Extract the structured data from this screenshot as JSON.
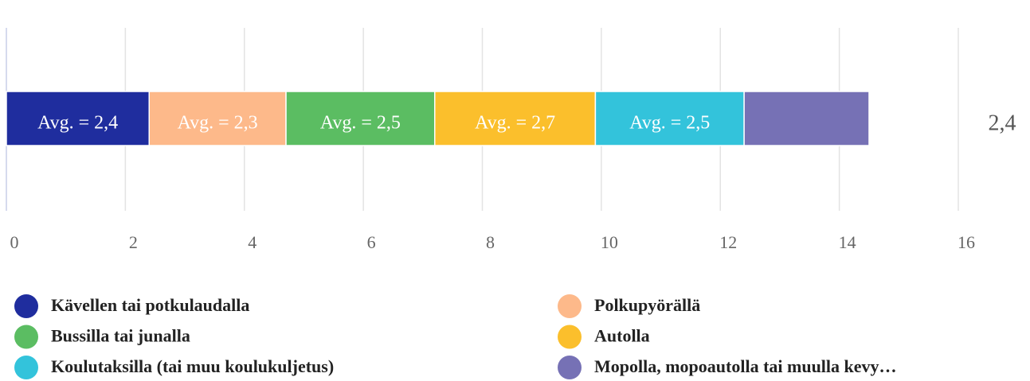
{
  "chart_data": {
    "type": "stacked-bar-horizontal",
    "series": [
      {
        "name": "Kävellen tai potkulaudalla",
        "color": "#1f2d9e",
        "values": [
          2.4
        ],
        "value_labels": [
          "Avg. = 2,4"
        ]
      },
      {
        "name": "Polkupyörällä",
        "color": "#fdb98a",
        "values": [
          2.3
        ],
        "value_labels": [
          "Avg. = 2,3"
        ]
      },
      {
        "name": "Bussilla tai junalla",
        "color": "#5bbd62",
        "values": [
          2.5
        ],
        "value_labels": [
          "Avg. = 2,5"
        ]
      },
      {
        "name": "Autolla",
        "color": "#fbbf2c",
        "values": [
          2.7
        ],
        "value_labels": [
          "Avg. = 2,7"
        ]
      },
      {
        "name": "Koulutaksilla (tai muu koulukuljetus)",
        "color": "#33c3db",
        "values": [
          2.5
        ],
        "value_labels": [
          "Avg. = 2,5"
        ]
      },
      {
        "name": "Mopolla, mopoautolla tai muulla kevy…",
        "color": "#7671b5",
        "values": [
          2.1
        ]
      }
    ],
    "total_label": "2,4",
    "xlim": [
      0,
      16
    ],
    "xticks": [
      0,
      2,
      4,
      6,
      8,
      10,
      12,
      14,
      16
    ],
    "grid": true
  }
}
